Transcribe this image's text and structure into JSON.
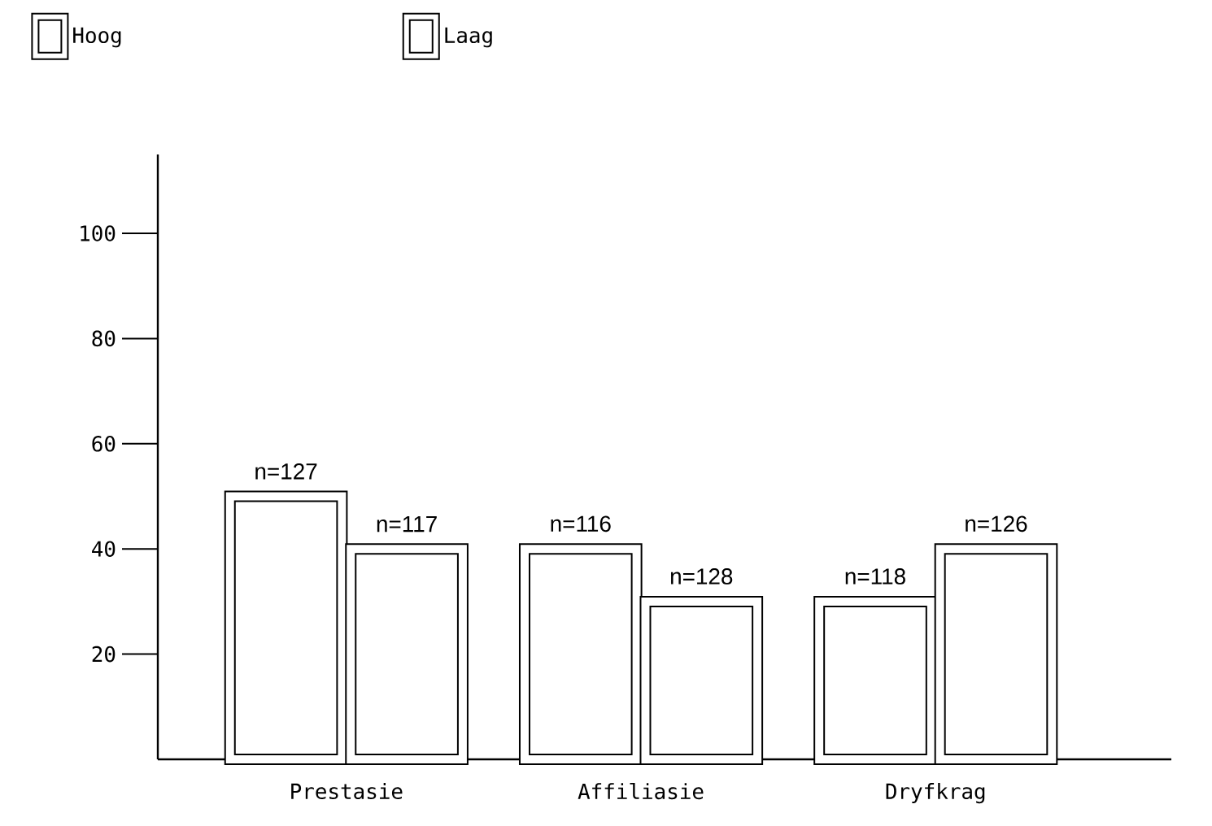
{
  "chart_data": {
    "type": "bar",
    "categories": [
      "Prestasie",
      "Affiliasie",
      "Dryfkrag"
    ],
    "series": [
      {
        "name": "Hoog",
        "color": "#ffffff",
        "values": [
          50,
          40,
          30
        ]
      },
      {
        "name": "Laag",
        "color": "#ffffff",
        "values": [
          40,
          30,
          40
        ]
      }
    ],
    "annotations": [
      "n=127",
      "n=116",
      "n=118",
      "n=117",
      "n=128",
      "n=126"
    ],
    "ylim": [
      0,
      115
    ],
    "yticks": [
      20,
      40,
      60,
      80,
      100
    ],
    "legend": "top left",
    "grid": false
  }
}
